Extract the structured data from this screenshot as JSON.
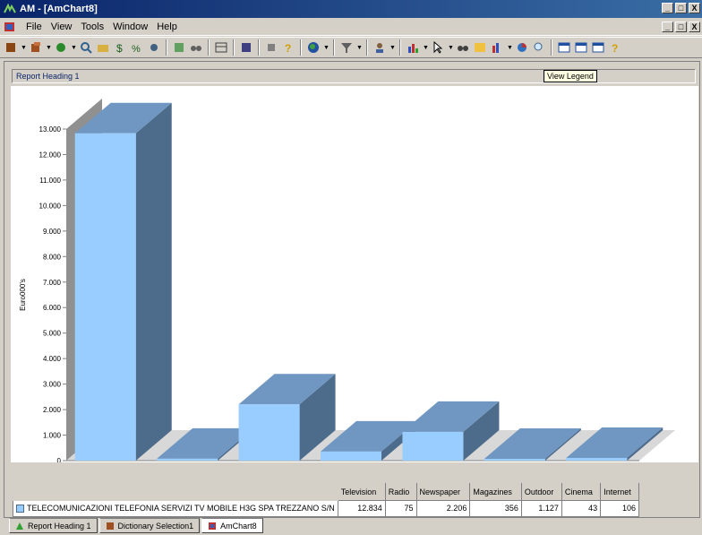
{
  "window": {
    "title": "AM - [AmChart8]",
    "min_label": "_",
    "max_label": "□",
    "close_label": "X"
  },
  "menu": {
    "items": [
      "File",
      "View",
      "Tools",
      "Window",
      "Help"
    ]
  },
  "report": {
    "heading": "Report Heading 1",
    "tooltip": "View Legend"
  },
  "chart_data": {
    "type": "bar",
    "categories": [
      "Television",
      "Radio",
      "Newspaper",
      "Magazines",
      "Outdoor",
      "Cinema",
      "Internet"
    ],
    "values": [
      12834,
      75,
      2206,
      356,
      1127,
      43,
      106
    ],
    "ylabel": "Euro000's",
    "ylim": [
      0,
      13000
    ],
    "yticks": [
      "0",
      "1.000",
      "2.000",
      "3.000",
      "4.000",
      "5.000",
      "6.000",
      "7.000",
      "8.000",
      "9.000",
      "10.000",
      "11.000",
      "12.000",
      "13.000"
    ],
    "grid": false,
    "three_d": true,
    "bar_color": "#99ccff",
    "side_color": "#4d6b8a",
    "top_color": "#6f97c2"
  },
  "legend": {
    "series_name": "TELECOMUNICAZIONI TELEFONIA SERVIZI TV MOBILE H3G SPA TREZZANO S/N",
    "headers": [
      "Television",
      "Radio",
      "Newspaper",
      "Magazines",
      "Outdoor",
      "Cinema",
      "Internet"
    ],
    "values": [
      "12.834",
      "75",
      "2.206",
      "356",
      "1.127",
      "43",
      "106"
    ]
  },
  "tabs": [
    {
      "label": "Report Heading 1"
    },
    {
      "label": "Dictionary Selection1"
    },
    {
      "label": "AmChart8"
    }
  ]
}
